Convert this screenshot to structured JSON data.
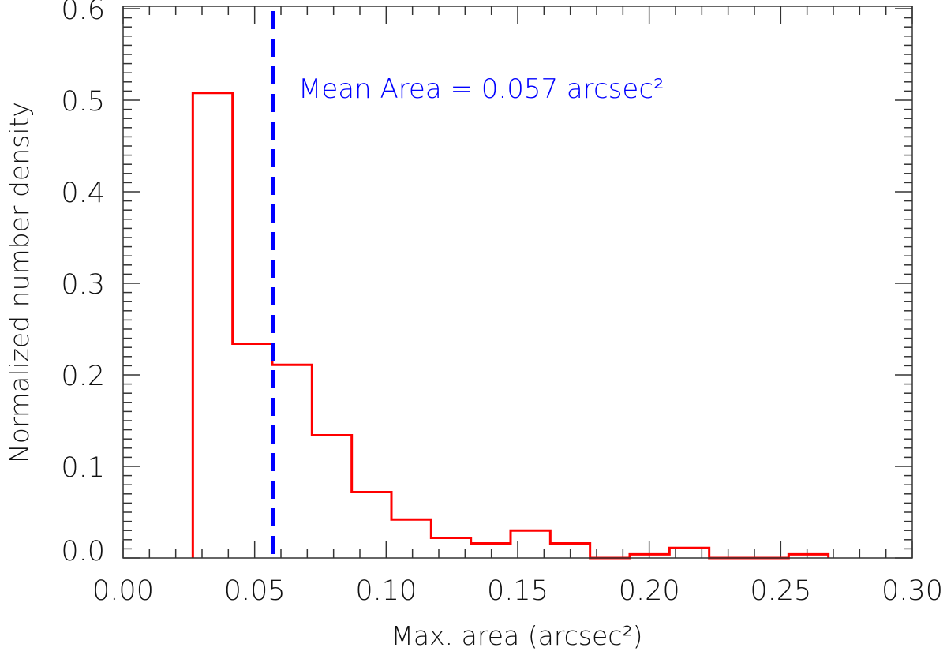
{
  "chart_data": {
    "type": "bar",
    "subtype": "step-histogram",
    "title": "",
    "xlabel": "Max. area (arcsec²)",
    "ylabel": "Normalized number density",
    "xlim": [
      0.0,
      0.3
    ],
    "ylim": [
      0.0,
      0.625
    ],
    "xticks": [
      "0.00",
      "0.05",
      "0.10",
      "0.15",
      "0.20",
      "0.25",
      "0.30"
    ],
    "xtick_values": [
      0.0,
      0.05,
      0.1,
      0.15,
      0.2,
      0.25,
      0.3
    ],
    "yticks": [
      "0.0",
      "0.1",
      "0.2",
      "0.3",
      "0.4",
      "0.5",
      "0.6"
    ],
    "ytick_values": [
      0.0,
      0.1,
      0.2,
      0.3,
      0.4,
      0.5,
      0.6
    ],
    "bin_edges": [
      0.0265,
      0.0416,
      0.0567,
      0.0718,
      0.0869,
      0.102,
      0.1171,
      0.1322,
      0.1473,
      0.1624,
      0.1775,
      0.1926,
      0.2077,
      0.2228,
      0.2379,
      0.253,
      0.2681
    ],
    "values": [
      0.508,
      0.234,
      0.211,
      0.134,
      0.072,
      0.042,
      0.022,
      0.016,
      0.03,
      0.016,
      0.0,
      0.004,
      0.011,
      0.0,
      0.0,
      0.004
    ],
    "series_color": "#ff0000",
    "mean_line": {
      "x": 0.057,
      "color": "#0000ff",
      "style": "dashed"
    },
    "annotation": "Mean Area = 0.057 arcsec²",
    "grid": false
  }
}
